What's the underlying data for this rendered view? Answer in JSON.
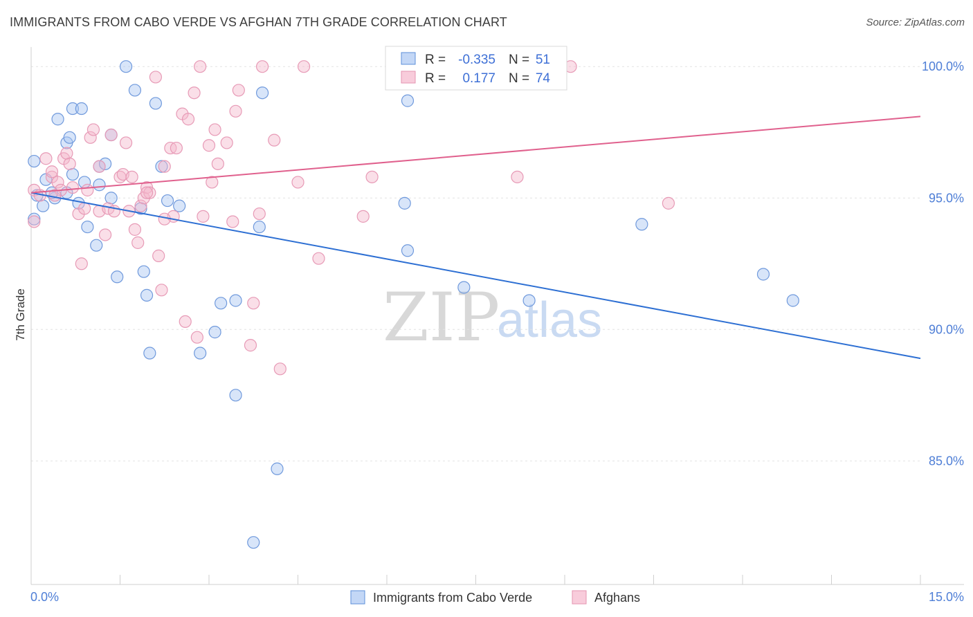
{
  "chart_data": {
    "type": "scatter",
    "title": "IMMIGRANTS FROM CABO VERDE VS AFGHAN 7TH GRADE CORRELATION CHART",
    "source": "Source: ZipAtlas.com",
    "xlabel": "",
    "ylabel": "7th Grade",
    "xlim": [
      0.0,
      15.0
    ],
    "ylim": [
      80.3,
      100.9
    ],
    "x_tick_labels": {
      "min": "0.0%",
      "max": "15.0%"
    },
    "y_ticks": [
      100.0,
      95.0,
      90.0,
      85.0
    ],
    "y_tick_labels": [
      "100.0%",
      "95.0%",
      "90.0%",
      "85.0%"
    ],
    "watermark": {
      "zip": "ZIP",
      "atlas": "atlas"
    },
    "stats": {
      "r_label": "R =",
      "n_label": "N =",
      "rows": [
        {
          "r": "-0.335",
          "n": "51"
        },
        {
          "r": "0.177",
          "n": "74"
        }
      ]
    },
    "series": [
      {
        "name": "Immigrants from Cabo Verde",
        "color": "#a9c6f2",
        "line_color": "#2d6fd3",
        "trend": {
          "x": [
            0.0,
            15.0
          ],
          "y": [
            95.2,
            88.9
          ]
        },
        "points": [
          [
            0.05,
            96.4
          ],
          [
            0.25,
            95.7
          ],
          [
            0.1,
            95.1
          ],
          [
            0.2,
            94.7
          ],
          [
            0.4,
            95.0
          ],
          [
            0.6,
            95.2
          ],
          [
            0.45,
            98.0
          ],
          [
            0.7,
            98.4
          ],
          [
            0.85,
            98.4
          ],
          [
            0.6,
            97.1
          ],
          [
            0.65,
            97.3
          ],
          [
            0.7,
            95.9
          ],
          [
            0.9,
            95.6
          ],
          [
            0.8,
            94.8
          ],
          [
            1.15,
            95.5
          ],
          [
            1.15,
            96.2
          ],
          [
            1.25,
            96.3
          ],
          [
            1.35,
            95.0
          ],
          [
            1.35,
            97.4
          ],
          [
            0.95,
            93.9
          ],
          [
            1.1,
            93.2
          ],
          [
            1.45,
            92.0
          ],
          [
            1.6,
            100.0
          ],
          [
            1.75,
            99.1
          ],
          [
            2.1,
            98.6
          ],
          [
            2.2,
            96.2
          ],
          [
            2.3,
            94.9
          ],
          [
            1.85,
            94.6
          ],
          [
            1.9,
            92.2
          ],
          [
            1.95,
            91.3
          ],
          [
            2.0,
            89.1
          ],
          [
            2.5,
            94.7
          ],
          [
            3.1,
            89.9
          ],
          [
            2.85,
            89.1
          ],
          [
            3.2,
            91.0
          ],
          [
            3.45,
            91.1
          ],
          [
            3.45,
            87.5
          ],
          [
            3.85,
            93.9
          ],
          [
            3.9,
            99.0
          ],
          [
            3.75,
            81.9
          ],
          [
            4.15,
            84.7
          ],
          [
            6.35,
            98.7
          ],
          [
            6.3,
            94.8
          ],
          [
            6.35,
            93.0
          ],
          [
            7.3,
            91.6
          ],
          [
            8.4,
            91.1
          ],
          [
            10.3,
            94.0
          ],
          [
            12.35,
            92.1
          ],
          [
            12.85,
            91.1
          ],
          [
            0.05,
            94.2
          ],
          [
            0.35,
            95.2
          ]
        ]
      },
      {
        "name": "Afghans",
        "color": "#f5b7cc",
        "line_color": "#e0608d",
        "trend": {
          "x": [
            0.0,
            15.0
          ],
          "y": [
            95.2,
            98.1
          ]
        },
        "points": [
          [
            0.05,
            95.3
          ],
          [
            0.15,
            95.1
          ],
          [
            0.25,
            96.5
          ],
          [
            0.35,
            95.8
          ],
          [
            0.35,
            96.0
          ],
          [
            0.45,
            95.6
          ],
          [
            0.5,
            95.3
          ],
          [
            0.55,
            96.5
          ],
          [
            0.6,
            96.7
          ],
          [
            0.65,
            96.3
          ],
          [
            0.7,
            95.4
          ],
          [
            0.8,
            94.4
          ],
          [
            0.9,
            94.6
          ],
          [
            0.85,
            92.5
          ],
          [
            0.95,
            95.3
          ],
          [
            1.0,
            97.3
          ],
          [
            1.05,
            97.6
          ],
          [
            1.15,
            96.2
          ],
          [
            1.15,
            94.5
          ],
          [
            1.25,
            93.6
          ],
          [
            1.3,
            94.6
          ],
          [
            1.35,
            97.4
          ],
          [
            1.4,
            94.5
          ],
          [
            1.5,
            95.8
          ],
          [
            1.55,
            95.9
          ],
          [
            1.6,
            97.1
          ],
          [
            1.65,
            94.5
          ],
          [
            1.7,
            95.8
          ],
          [
            1.75,
            93.8
          ],
          [
            1.8,
            93.3
          ],
          [
            1.85,
            94.7
          ],
          [
            1.9,
            95.0
          ],
          [
            1.95,
            95.4
          ],
          [
            2.0,
            95.2
          ],
          [
            2.1,
            99.6
          ],
          [
            2.15,
            92.8
          ],
          [
            2.2,
            91.5
          ],
          [
            2.25,
            96.2
          ],
          [
            2.35,
            96.9
          ],
          [
            2.4,
            94.3
          ],
          [
            2.45,
            96.9
          ],
          [
            2.55,
            98.2
          ],
          [
            2.6,
            90.3
          ],
          [
            2.65,
            98.0
          ],
          [
            2.75,
            99.0
          ],
          [
            2.8,
            89.7
          ],
          [
            2.85,
            100.0
          ],
          [
            2.9,
            94.3
          ],
          [
            3.0,
            97.0
          ],
          [
            3.05,
            95.6
          ],
          [
            3.1,
            97.6
          ],
          [
            3.15,
            96.3
          ],
          [
            3.3,
            97.1
          ],
          [
            3.4,
            94.1
          ],
          [
            3.45,
            98.3
          ],
          [
            3.5,
            99.1
          ],
          [
            3.7,
            89.4
          ],
          [
            3.75,
            91.0
          ],
          [
            3.85,
            94.4
          ],
          [
            3.9,
            100.0
          ],
          [
            4.1,
            97.2
          ],
          [
            4.2,
            88.5
          ],
          [
            4.5,
            95.6
          ],
          [
            4.6,
            100.0
          ],
          [
            4.85,
            92.7
          ],
          [
            5.6,
            94.3
          ],
          [
            5.75,
            95.8
          ],
          [
            8.2,
            95.8
          ],
          [
            9.1,
            100.0
          ],
          [
            10.75,
            94.8
          ],
          [
            0.05,
            94.1
          ],
          [
            1.95,
            95.2
          ],
          [
            2.25,
            94.2
          ],
          [
            0.4,
            95.1
          ]
        ]
      }
    ]
  }
}
